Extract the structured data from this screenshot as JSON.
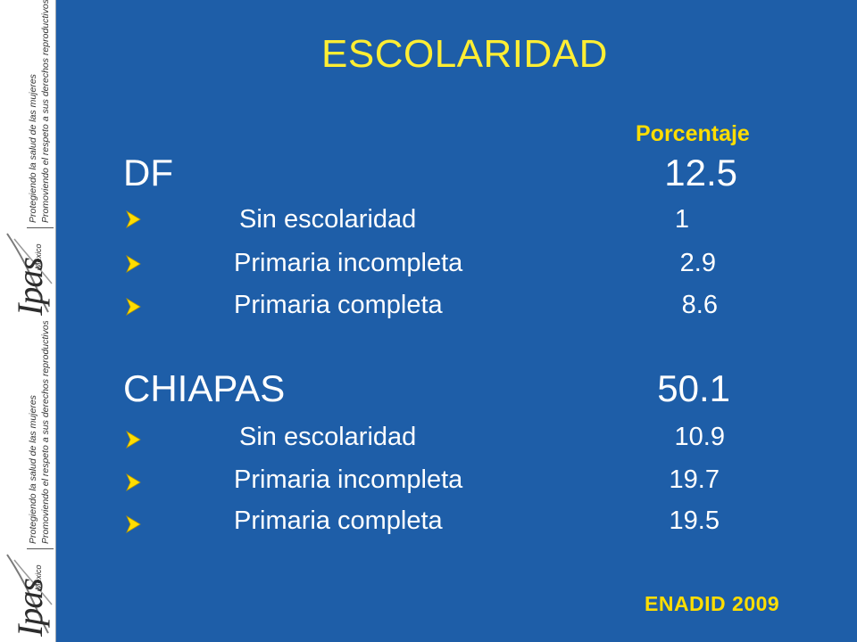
{
  "slide": {
    "title": "ESCOLARIDAD",
    "column_header": "Porcentaje",
    "source": "ENADID 2009"
  },
  "branding": {
    "logo": "Ipas",
    "logo_sub": "México",
    "tagline_1": "Protegiendo la salud de las mujeres",
    "tagline_2": "Promoviendo el respeto a sus derechos reproductivos"
  },
  "regions": [
    {
      "name": "DF",
      "value": "12.5",
      "items": [
        {
          "label": "Sin escolaridad",
          "value": "1"
        },
        {
          "label": "Primaria incompleta",
          "value": "2.9"
        },
        {
          "label": "Primaria completa",
          "value": "8.6"
        }
      ]
    },
    {
      "name": "CHIAPAS",
      "value": "50.1",
      "items": [
        {
          "label": "Sin escolaridad",
          "value": "10.9"
        },
        {
          "label": "Primaria incompleta",
          "value": "19.7"
        },
        {
          "label": "Primaria completa",
          "value": "19.5"
        }
      ]
    }
  ],
  "icons": {
    "bullet": "arrow-bullet-icon",
    "logo": "ipas-logo-icon"
  },
  "colors": {
    "background": "#1e5ea8",
    "title": "#ffee33",
    "accent": "#ffdd00",
    "text": "#ffffff"
  }
}
